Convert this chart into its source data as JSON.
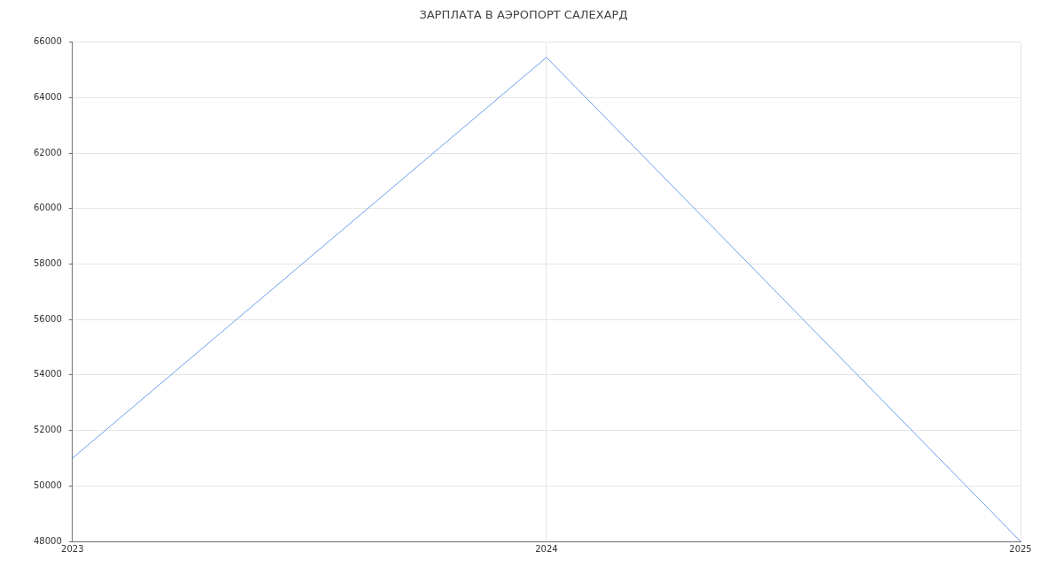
{
  "chart_data": {
    "type": "line",
    "title": "ЗАРПЛАТА В АЭРОПОРТ САЛЕХАРД",
    "x": [
      2023,
      2024,
      2025
    ],
    "series": [
      {
        "color": "#6d9eef",
        "values": [
          51000,
          65450,
          48000
        ]
      }
    ],
    "xlim": [
      2023,
      2025
    ],
    "xticks": [
      2023,
      2024,
      2025
    ],
    "ylim": [
      48000,
      66000
    ],
    "yticks": [
      48000,
      50000,
      52000,
      54000,
      56000,
      58000,
      60000,
      62000,
      64000,
      66000
    ],
    "grid": true,
    "legend": false,
    "marker": "none",
    "line_style": "solid"
  }
}
